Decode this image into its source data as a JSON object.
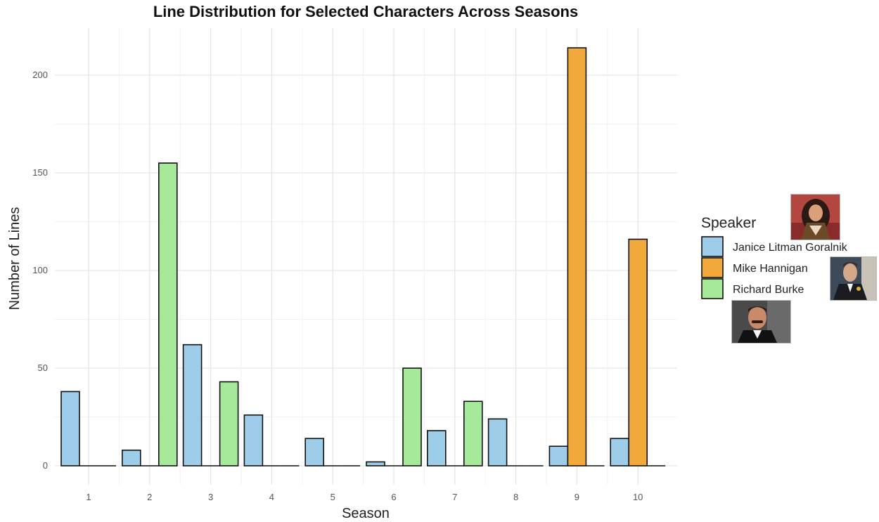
{
  "chart_data": {
    "type": "bar",
    "title": "Line Distribution for Selected Characters Across Seasons",
    "xlabel": "Season",
    "ylabel": "Number of Lines",
    "categories": [
      "1",
      "2",
      "3",
      "4",
      "5",
      "6",
      "7",
      "8",
      "9",
      "10"
    ],
    "series": [
      {
        "name": "Janice Litman Goralnik",
        "color": "#9DCDE8",
        "values": [
          38,
          8,
          62,
          26,
          14,
          2,
          18,
          24,
          10,
          14
        ]
      },
      {
        "name": "Mike Hannigan",
        "color": "#F2A93B",
        "values": [
          0,
          0,
          0,
          0,
          0,
          0,
          0,
          0,
          214,
          116
        ]
      },
      {
        "name": "Richard Burke",
        "color": "#A6E99A",
        "values": [
          0,
          155,
          43,
          0,
          0,
          50,
          33,
          0,
          0,
          0
        ]
      }
    ],
    "ylim": [
      0,
      220
    ],
    "yticks": [
      0,
      50,
      100,
      150,
      200
    ],
    "grid": true,
    "legend": {
      "title": "Speaker",
      "placement": "right"
    }
  },
  "legend_images": [
    {
      "name": "janice-photo",
      "depicts": "Janice Litman Goralnik"
    },
    {
      "name": "mike-photo",
      "depicts": "Mike Hannigan"
    },
    {
      "name": "richard-photo",
      "depicts": "Richard Burke"
    }
  ]
}
